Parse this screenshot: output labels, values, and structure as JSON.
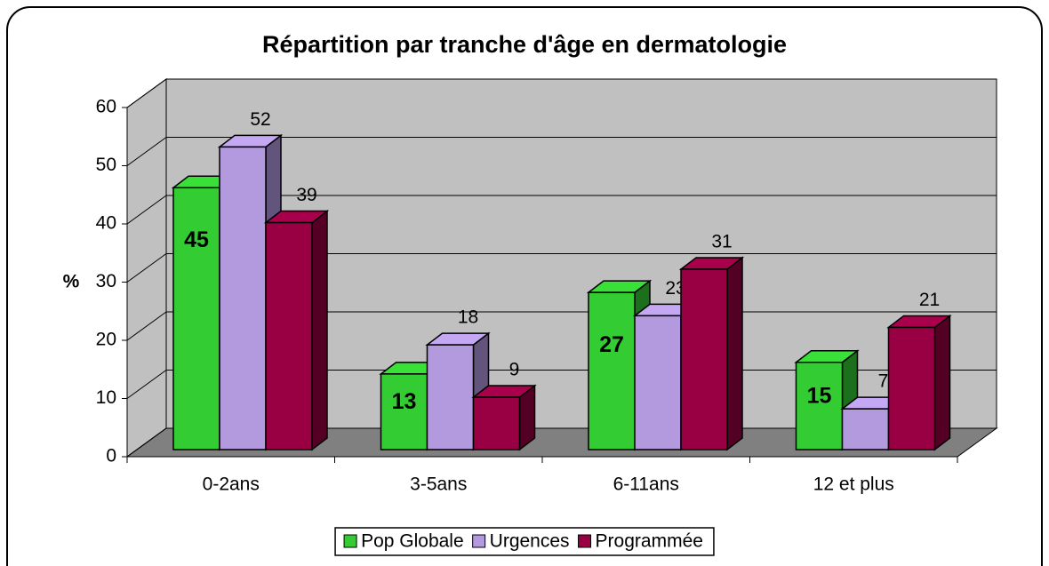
{
  "chart_data": {
    "type": "bar3d",
    "title": "Répartition par tranche d'âge en dermatologie",
    "y_label": "%",
    "categories": [
      "0-2ans",
      "3-5ans",
      "6-11ans",
      "12 et plus"
    ],
    "series": [
      {
        "name": "Pop Globale",
        "color": "#33cc33",
        "values": [
          45,
          13,
          27,
          15
        ],
        "labels_inside": true
      },
      {
        "name": "Urgences",
        "color": "#b399dd",
        "values": [
          52,
          18,
          23,
          7
        ]
      },
      {
        "name": "Programmée",
        "color": "#990044",
        "values": [
          39,
          9,
          31,
          21
        ]
      }
    ],
    "ylim": [
      0,
      60
    ],
    "yticks": [
      0,
      10,
      20,
      30,
      40,
      50,
      60
    ],
    "grid": true,
    "legend": "bottom"
  }
}
